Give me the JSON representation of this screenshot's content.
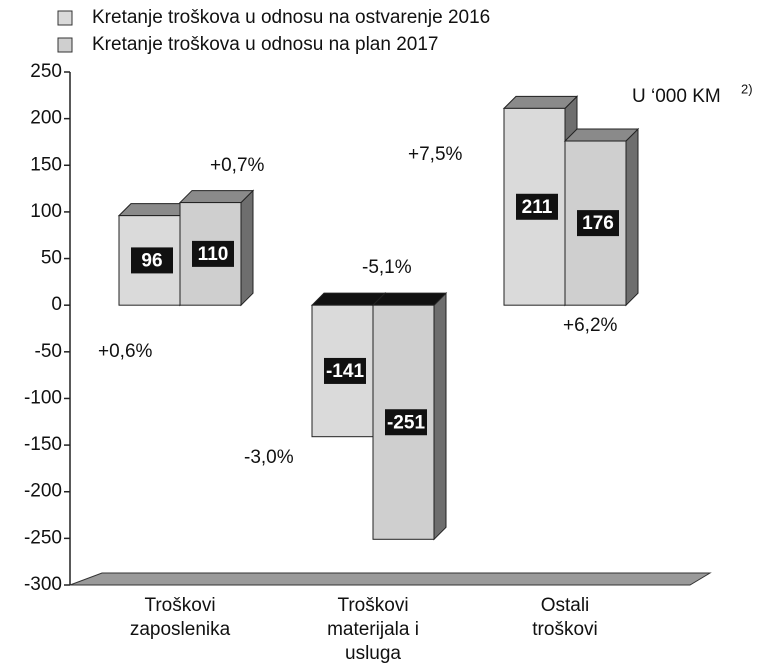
{
  "chart_data": {
    "type": "bar3d",
    "categories": [
      "Troškovi\nzaposlenika",
      "Troškovi\nmaterijala i\nusluga",
      "Ostali\ntroškovi"
    ],
    "series": [
      {
        "name": "Kretanje troškova u odnosu na ostvarenje 2016",
        "color": "#dadada",
        "values": [
          96,
          -141,
          211
        ]
      },
      {
        "name": "Kretanje troškova u odnosu na plan 2017",
        "color": "#cfcfcf",
        "values": [
          110,
          -251,
          176
        ]
      }
    ],
    "ylim": [
      -300,
      250
    ],
    "yticks": [
      -300,
      -250,
      -200,
      -150,
      -100,
      -50,
      0,
      50,
      100,
      150,
      200,
      250
    ],
    "unit": "U ‘000 KM",
    "unit_note": "2)",
    "annotations": [
      "+0,6%",
      "+0,7%",
      "-3,0%",
      "-5,1%",
      "+7,5%",
      "+6,2%"
    ]
  }
}
